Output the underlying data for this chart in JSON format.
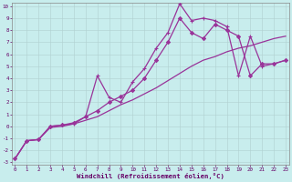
{
  "xlabel": "Windchill (Refroidissement éolien,°C)",
  "bg_color": "#c8eded",
  "grid_color": "#b0d0d0",
  "line_color": "#993399",
  "xlim": [
    0,
    23
  ],
  "ylim": [
    -3,
    10
  ],
  "xticks": [
    0,
    1,
    2,
    3,
    4,
    5,
    6,
    7,
    8,
    9,
    10,
    11,
    12,
    13,
    14,
    15,
    16,
    17,
    18,
    19,
    20,
    21,
    22,
    23
  ],
  "yticks": [
    -3,
    -2,
    -1,
    0,
    1,
    2,
    3,
    4,
    5,
    6,
    7,
    8,
    9,
    10
  ],
  "line1_x": [
    0,
    1,
    2,
    3,
    4,
    5,
    6,
    7,
    8,
    9,
    10,
    11,
    12,
    13,
    14,
    15,
    16,
    17,
    18,
    19,
    20,
    21,
    22,
    23
  ],
  "line1_y": [
    -2.7,
    -1.2,
    -1.1,
    -0.1,
    0.0,
    0.2,
    0.5,
    0.8,
    1.3,
    1.8,
    2.2,
    2.7,
    3.2,
    3.8,
    4.4,
    5.0,
    5.5,
    5.8,
    6.2,
    6.5,
    6.7,
    7.0,
    7.3,
    7.5
  ],
  "line2_x": [
    0,
    1,
    2,
    3,
    4,
    5,
    6,
    7,
    8,
    9,
    10,
    11,
    12,
    13,
    14,
    15,
    16,
    17,
    18,
    19,
    20,
    21,
    22,
    23
  ],
  "line2_y": [
    -2.7,
    -1.2,
    -1.1,
    0.0,
    0.1,
    0.2,
    0.8,
    4.2,
    2.4,
    2.0,
    3.7,
    4.8,
    6.5,
    7.8,
    10.2,
    8.8,
    9.0,
    8.8,
    8.3,
    4.2,
    7.5,
    5.0,
    5.2,
    5.5
  ],
  "line3_x": [
    0,
    1,
    2,
    3,
    4,
    5,
    6,
    7,
    8,
    9,
    10,
    11,
    12,
    13,
    14,
    15,
    16,
    17,
    18,
    19,
    20,
    21,
    22,
    23
  ],
  "line3_y": [
    -2.7,
    -1.2,
    -1.1,
    0.0,
    0.1,
    0.3,
    0.8,
    1.3,
    2.0,
    2.5,
    3.0,
    4.0,
    5.5,
    7.0,
    9.0,
    7.8,
    7.3,
    8.5,
    8.0,
    7.5,
    4.2,
    5.2,
    5.2,
    5.5
  ]
}
